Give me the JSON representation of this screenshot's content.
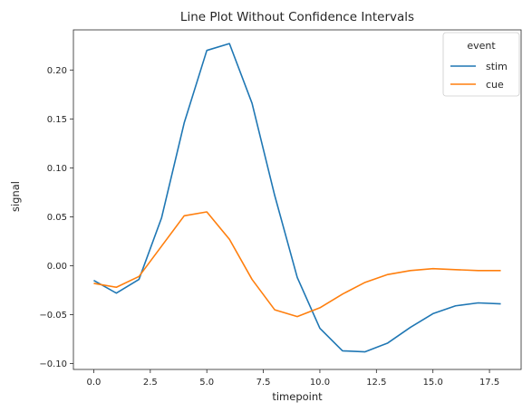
{
  "chart_data": {
    "type": "line",
    "title": "Line Plot Without Confidence Intervals",
    "xlabel": "timepoint",
    "ylabel": "signal",
    "xlim": [
      -0.9,
      18.9
    ],
    "ylim": [
      -0.106,
      0.241
    ],
    "xticks": [
      0.0,
      2.5,
      5.0,
      7.5,
      10.0,
      12.5,
      15.0,
      17.5
    ],
    "xtick_labels": [
      "0.0",
      "2.5",
      "5.0",
      "7.5",
      "10.0",
      "12.5",
      "15.0",
      "17.5"
    ],
    "yticks": [
      -0.1,
      -0.05,
      0.0,
      0.05,
      0.1,
      0.15,
      0.2
    ],
    "ytick_labels": [
      "−0.10",
      "−0.05",
      "0.00",
      "0.05",
      "0.10",
      "0.15",
      "0.20"
    ],
    "grid": false,
    "legend": {
      "title": "event",
      "placement": "top-right"
    },
    "x": [
      0,
      1,
      2,
      3,
      4,
      5,
      6,
      7,
      8,
      9,
      10,
      11,
      12,
      13,
      14,
      15,
      16,
      17,
      18
    ],
    "series": [
      {
        "name": "stim",
        "color": "#1f77b4",
        "values": [
          -0.015,
          -0.028,
          -0.014,
          0.049,
          0.146,
          0.22,
          0.227,
          0.166,
          0.072,
          -0.012,
          -0.064,
          -0.087,
          -0.088,
          -0.079,
          -0.063,
          -0.049,
          -0.041,
          -0.038,
          -0.039
        ]
      },
      {
        "name": "cue",
        "color": "#ff7f0e",
        "values": [
          -0.018,
          -0.022,
          -0.011,
          0.02,
          0.051,
          0.055,
          0.027,
          -0.014,
          -0.045,
          -0.052,
          -0.043,
          -0.029,
          -0.017,
          -0.009,
          -0.005,
          -0.003,
          -0.004,
          -0.005,
          -0.005
        ]
      }
    ]
  }
}
